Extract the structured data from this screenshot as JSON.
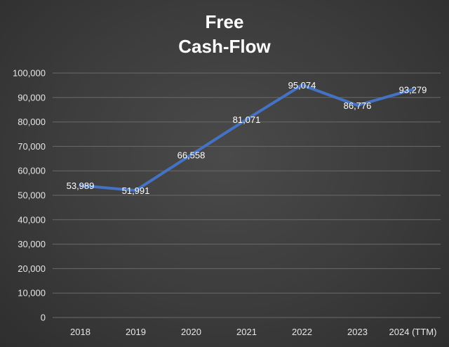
{
  "chart_data": {
    "type": "line",
    "title_lines": [
      "Free",
      "Cash-Flow"
    ],
    "xlabel": "",
    "ylabel": "",
    "categories": [
      "2018",
      "2019",
      "2020",
      "2021",
      "2022",
      "2023",
      "2024 (TTM)"
    ],
    "series": [
      {
        "values": [
          53989,
          51991,
          66558,
          81071,
          95074,
          86776,
          93279
        ],
        "labels": [
          "53,989",
          "51,991",
          "66,558",
          "81,071",
          "95,074",
          "86,776",
          "93,279"
        ]
      }
    ],
    "ylim": [
      0,
      100000
    ],
    "yticks": [
      0,
      10000,
      20000,
      30000,
      40000,
      50000,
      60000,
      70000,
      80000,
      90000,
      100000
    ],
    "ytick_labels": [
      "0",
      "10,000",
      "20,000",
      "30,000",
      "40,000",
      "50,000",
      "60,000",
      "70,000",
      "80,000",
      "90,000",
      "100,000"
    ],
    "grid": true,
    "legend": "none",
    "colors": {
      "line": "#4472c4",
      "grid": "#6a6a6a",
      "text": "#ffffff"
    }
  }
}
